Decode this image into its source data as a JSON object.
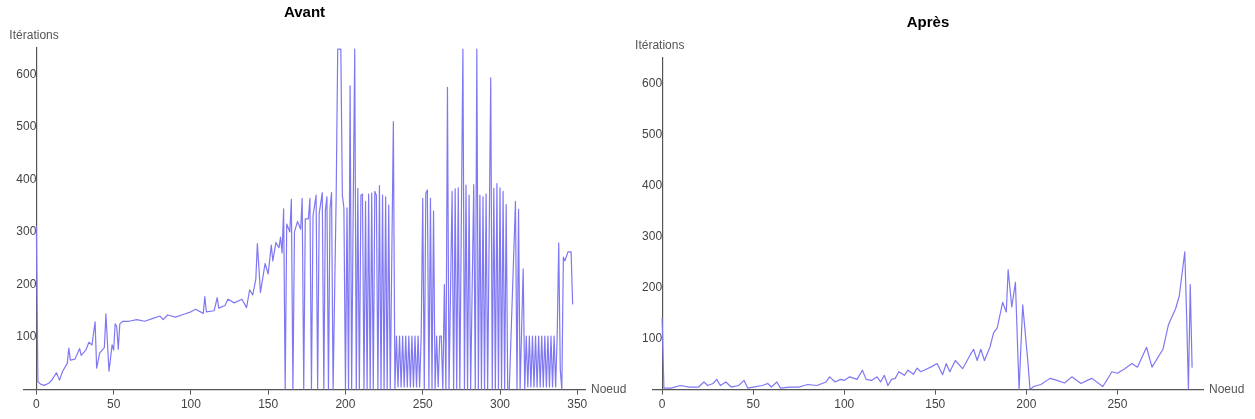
{
  "chart_data": [
    {
      "type": "line",
      "title": "Avant",
      "xlabel": "Noeud",
      "ylabel": "Itérations",
      "xlim": [
        -8,
        355
      ],
      "xticks": [
        0,
        50,
        100,
        150,
        200,
        250,
        300,
        350
      ],
      "ylim": [
        0,
        650
      ],
      "yticks": [
        100,
        200,
        300,
        400,
        500,
        600
      ],
      "grid": false,
      "legend": false,
      "marker": "none",
      "line_style": "solid",
      "series": [
        {
          "color": "#7f78f2",
          "x": [
            0,
            1,
            3,
            5,
            8,
            10,
            13,
            15,
            17,
            20,
            21,
            22,
            25,
            28,
            29,
            32,
            34,
            36,
            38,
            39,
            41,
            44,
            45,
            47,
            49,
            50,
            51,
            52,
            53,
            54,
            56,
            60,
            65,
            70,
            75,
            80,
            82,
            85,
            90,
            95,
            100,
            103,
            108,
            109,
            110,
            115,
            117,
            118,
            122,
            124,
            128,
            133,
            136,
            138,
            140,
            142,
            143,
            145,
            148,
            150,
            152,
            153,
            155,
            157,
            158,
            159,
            160,
            161,
            162,
            164,
            165,
            166,
            167,
            169,
            171,
            172,
            173,
            174,
            176,
            177,
            178,
            179,
            181,
            182,
            183,
            185,
            186,
            187,
            188,
            189,
            190,
            191,
            192,
            194,
            195,
            197,
            198,
            199,
            200,
            201,
            202,
            203,
            204,
            205,
            206,
            207,
            208,
            209,
            210,
            211,
            212,
            213,
            214,
            215,
            216,
            217,
            218,
            219,
            220,
            221,
            222,
            223,
            224,
            225,
            226,
            227,
            228,
            229,
            231,
            232,
            233,
            234,
            235,
            236,
            237,
            238,
            239,
            240,
            241,
            242,
            243,
            244,
            245,
            246,
            247,
            248,
            249,
            250,
            251,
            252,
            253,
            254,
            255,
            256,
            257,
            258,
            259,
            260,
            261,
            262,
            263,
            264,
            265,
            266,
            267,
            269,
            270,
            271,
            272,
            273,
            274,
            276,
            277,
            278,
            279,
            280,
            281,
            283,
            284,
            285,
            286,
            287,
            288,
            289,
            290,
            291,
            292,
            294,
            295,
            296,
            297,
            298,
            299,
            300,
            301,
            302,
            303,
            304,
            305,
            306,
            310,
            311,
            312,
            313,
            315,
            316,
            317,
            318,
            319,
            320,
            321,
            322,
            323,
            324,
            325,
            326,
            327,
            328,
            329,
            330,
            331,
            332,
            333,
            334,
            335,
            336,
            337,
            338,
            339,
            340,
            341,
            342,
            344,
            346,
            347
          ],
          "values": [
            310,
            15,
            10,
            8,
            12,
            18,
            32,
            18,
            35,
            50,
            79,
            56,
            58,
            78,
            65,
            75,
            90,
            85,
            129,
            41,
            70,
            80,
            144,
            35,
            85,
            75,
            125,
            120,
            77,
            125,
            130,
            130,
            133,
            130,
            135,
            140,
            133,
            142,
            138,
            143,
            148,
            153,
            145,
            177,
            148,
            150,
            175,
            155,
            160,
            172,
            165,
            172,
            156,
            190,
            180,
            210,
            278,
            185,
            240,
            220,
            275,
            245,
            280,
            270,
            290,
            260,
            344,
            0,
            315,
            300,
            362,
            0,
            300,
            320,
            305,
            364,
            0,
            325,
            325,
            364,
            0,
            330,
            370,
            0,
            335,
            375,
            0,
            340,
            367,
            0,
            345,
            375,
            0,
            370,
            648,
            648,
            370,
            345,
            0,
            346,
            0,
            578,
            0,
            340,
            648,
            0,
            383,
            0,
            370,
            372,
            0,
            358,
            0,
            372,
            0,
            374,
            0,
            377,
            370,
            0,
            388,
            0,
            370,
            0,
            367,
            0,
            351,
            0,
            510,
            0,
            102,
            5,
            102,
            5,
            102,
            5,
            102,
            5,
            102,
            5,
            102,
            5,
            102,
            5,
            102,
            5,
            102,
            364,
            0,
            374,
            380,
            0,
            364,
            0,
            340,
            0,
            102,
            5,
            102,
            102,
            0,
            200,
            0,
            575,
            0,
            377,
            0,
            382,
            0,
            384,
            0,
            648,
            0,
            389,
            0,
            370,
            0,
            390,
            0,
            648,
            0,
            370,
            0,
            367,
            0,
            372,
            0,
            593,
            0,
            383,
            0,
            392,
            0,
            384,
            0,
            377,
            0,
            352,
            0,
            0,
            358,
            0,
            343,
            0,
            230,
            0,
            102,
            5,
            102,
            5,
            102,
            5,
            102,
            5,
            102,
            5,
            102,
            5,
            102,
            5,
            102,
            5,
            102,
            5,
            102,
            5,
            102,
            279,
            38,
            0,
            252,
            245,
            262,
            262,
            163
          ]
        }
      ]
    },
    {
      "type": "line",
      "title": "Après",
      "xlabel": "Noeud",
      "ylabel": "Itérations",
      "xlim": [
        -5,
        297
      ],
      "xticks": [
        0,
        50,
        100,
        150,
        200,
        250
      ],
      "ylim": [
        0,
        650
      ],
      "yticks": [
        100,
        200,
        300,
        400,
        500,
        600
      ],
      "grid": false,
      "legend": false,
      "marker": "none",
      "line_style": "solid",
      "series": [
        {
          "color": "#7f78f2",
          "x": [
            0,
            1,
            5,
            10,
            15,
            20,
            23,
            25,
            28,
            30,
            32,
            35,
            38,
            42,
            45,
            47,
            50,
            55,
            58,
            60,
            63,
            65,
            70,
            75,
            78,
            80,
            85,
            90,
            92,
            95,
            98,
            100,
            103,
            107,
            110,
            112,
            115,
            118,
            120,
            122,
            124,
            126,
            128,
            130,
            133,
            135,
            138,
            140,
            142,
            145,
            148,
            151,
            154,
            156,
            158,
            161,
            165,
            169,
            171,
            173,
            175,
            177,
            180,
            182,
            184,
            187,
            189,
            190,
            192,
            194,
            196,
            198,
            201,
            202,
            204,
            208,
            213,
            216,
            221,
            225,
            230,
            234,
            236,
            242,
            247,
            250,
            254,
            258,
            261,
            266,
            269,
            275,
            278,
            282,
            284,
            287,
            288,
            289,
            290,
            291
          ],
          "values": [
            140,
            3,
            3,
            8,
            5,
            5,
            15,
            8,
            12,
            20,
            8,
            15,
            5,
            8,
            18,
            3,
            5,
            8,
            12,
            5,
            15,
            3,
            5,
            5,
            8,
            10,
            8,
            15,
            25,
            15,
            20,
            18,
            25,
            20,
            38,
            20,
            18,
            25,
            15,
            28,
            8,
            20,
            22,
            35,
            28,
            38,
            30,
            42,
            35,
            40,
            45,
            51,
            29,
            51,
            35,
            57,
            41,
            67,
            79,
            57,
            79,
            57,
            83,
            111,
            121,
            171,
            152,
            235,
            162,
            210,
            0,
            166,
            48,
            0,
            6,
            10,
            22,
            19,
            13,
            25,
            12,
            19,
            22,
            6,
            35,
            32,
            41,
            51,
            44,
            83,
            44,
            79,
            127,
            159,
            184,
            270,
            146,
            0,
            206,
            44
          ]
        }
      ]
    }
  ]
}
